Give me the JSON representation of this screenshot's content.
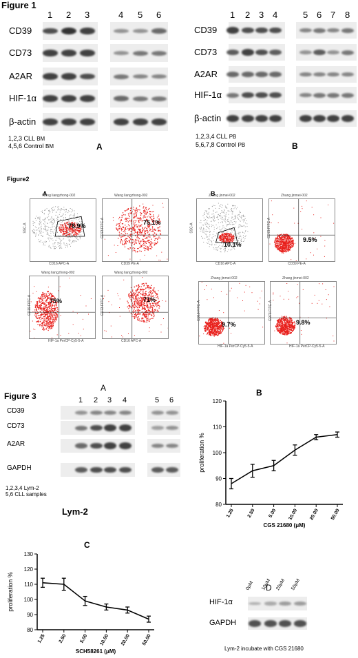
{
  "figure1": {
    "title": "Figure 1",
    "panelA": {
      "letter": "A",
      "lanes": [
        "1",
        "2",
        "3",
        "4",
        "5",
        "6"
      ],
      "rows": [
        "CD39",
        "CD73",
        "A2AR",
        "HIF-1α",
        "β-actin"
      ],
      "legend1": "1,2,3  CLL",
      "legend1_tag": "BM",
      "legend2": "4,5,6  Control",
      "legend2_tag": "BM"
    },
    "panelB": {
      "letter": "B",
      "lanes": [
        "1",
        "2",
        "3",
        "4",
        "5",
        "6",
        "7",
        "8"
      ],
      "rows": [
        "CD39",
        "CD73",
        "A2AR",
        "HIF-1α",
        "β-actin"
      ],
      "legend1": "1,2,3,4  CLL",
      "legend1_tag": "PB",
      "legend2": "5,6,7,8  Control",
      "legend2_tag": "PB"
    }
  },
  "figure2": {
    "title": "Figure2",
    "panelA": {
      "letter": "A",
      "plots": [
        {
          "header": "Wang liangzhong-002",
          "pct": "78.9%",
          "xlabel": "CD16 APC-A",
          "ylabel": "SSC-A"
        },
        {
          "header": "Wang liangzhong-002",
          "pct": "75.1%",
          "xlabel": "CD39 PE-A",
          "ylabel": "CD73 FITC-A"
        },
        {
          "header": "Wang liangzhong-002",
          "pct": "75%",
          "xlabel": "HIF-1a PerCP-Cy5-5-A",
          "ylabel": "CD19 FITC-A"
        },
        {
          "header": "Wang liangzhong-002",
          "pct": "71%",
          "xlabel": "CD16 APC-A",
          "ylabel": "CD73 FITC-A"
        }
      ]
    },
    "panelB": {
      "letter": "B",
      "plots": [
        {
          "header": "Zhang jinmei-002",
          "pct": "10.1%",
          "xlabel": "CD16 APC-A",
          "ylabel": "SSC-A"
        },
        {
          "header": "Zhang jinmei-002",
          "pct": "9.5%",
          "xlabel": "CD39 PE-A",
          "ylabel": "CD73 FITC-A"
        },
        {
          "header": "Zhang jinmei-002",
          "pct": "9.7%",
          "xlabel": "HIF-1a PerCP-Cy5-5-A",
          "ylabel": "CD19 FITC-A"
        },
        {
          "header": "Zhang jinmei-002",
          "pct": "9.8%",
          "xlabel": "HIF-1a PerCP-Cy5-5-A",
          "ylabel": "CD73 FITC-A"
        }
      ]
    }
  },
  "figure3": {
    "title": "Figure  3",
    "panelA": {
      "letter": "A",
      "lanes": [
        "1",
        "2",
        "3",
        "4",
        "5",
        "6"
      ],
      "rows": [
        "CD39",
        "CD73",
        "A2AR",
        "GAPDH"
      ],
      "legend1": "1,2,3,4   Lym-2",
      "legend2": "5,6       CLL samples",
      "caption": "Lym-2"
    },
    "panelD": {
      "letter": "D",
      "concentrations": [
        "0μM",
        "10μM",
        "20μM",
        "50μM"
      ],
      "rows": [
        "HIF-1α",
        "GAPDH"
      ],
      "caption": "Lym-2 incubate with CGS 21680"
    }
  },
  "chart_data": [
    {
      "panel": "B",
      "type": "line",
      "xlabel": "CGS 21680 (μM)",
      "ylabel": "proliferation %",
      "categories": [
        "1.25",
        "2.50",
        "5.00",
        "10.00",
        "20.00",
        "50.00"
      ],
      "values": [
        88,
        93,
        95,
        101,
        106,
        107
      ],
      "errors": [
        2,
        2.5,
        2,
        2,
        1,
        1
      ],
      "ylim": [
        80,
        120
      ],
      "yticks": [
        80,
        90,
        100,
        110,
        120
      ]
    },
    {
      "panel": "C",
      "type": "line",
      "xlabel": "SCH58261 (μM)",
      "ylabel": "proliferation %",
      "categories": [
        "1.25",
        "2.50",
        "5.00",
        "10.00",
        "20.00",
        "50.00"
      ],
      "values": [
        111,
        110,
        99,
        95,
        93,
        87
      ],
      "errors": [
        3,
        4,
        3,
        2,
        2,
        2
      ],
      "ylim": [
        80,
        130
      ],
      "yticks": [
        80,
        90,
        100,
        110,
        120,
        130
      ]
    }
  ]
}
